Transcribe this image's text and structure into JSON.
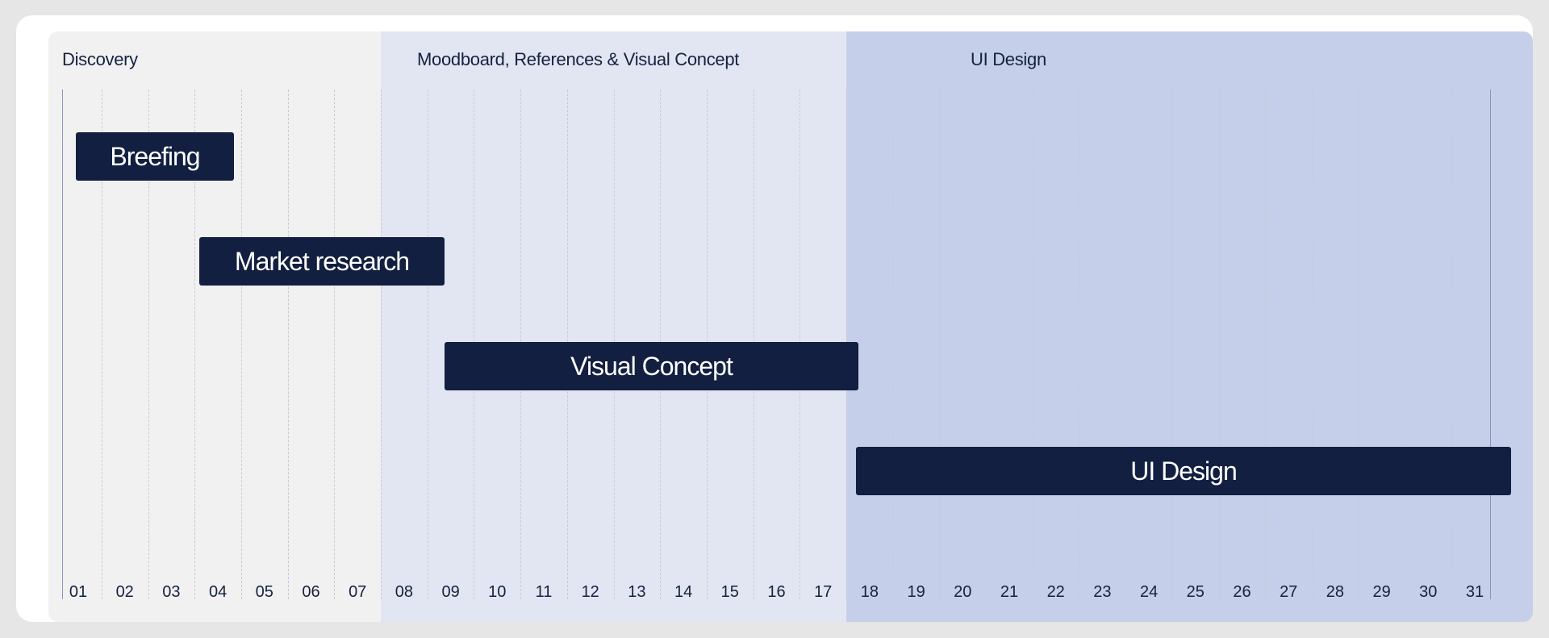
{
  "chart_data": {
    "type": "gantt",
    "x_ticks": [
      "01",
      "02",
      "03",
      "04",
      "05",
      "06",
      "07",
      "08",
      "09",
      "10",
      "11",
      "12",
      "13",
      "14",
      "15",
      "16",
      "17",
      "18",
      "19",
      "20",
      "21",
      "22",
      "23",
      "24",
      "25",
      "26",
      "27",
      "28",
      "29",
      "30",
      "31"
    ],
    "xlim": [
      1,
      31
    ],
    "grid": true,
    "phases": [
      {
        "label": "Discovery",
        "start": 1,
        "end": 7.5,
        "color": "#f1f1f1"
      },
      {
        "label": "Moodboard, References & Visual Concept",
        "start": 7.5,
        "end": 17.5,
        "color": "#e2e6f3"
      },
      {
        "label": "UI Design",
        "start": 17.5,
        "end": 31.3,
        "color": "#c5cfe9"
      }
    ],
    "tasks": [
      {
        "label": "Breefing",
        "start": 1,
        "end": 4
      },
      {
        "label": "Market research",
        "start": 3.5,
        "end": 8.5
      },
      {
        "label": "Visual Concept",
        "start": 8.5,
        "end": 17.5
      },
      {
        "label": "UI Design",
        "start": 17.5,
        "end": 31.2
      }
    ],
    "bar_color": "#121f40"
  }
}
